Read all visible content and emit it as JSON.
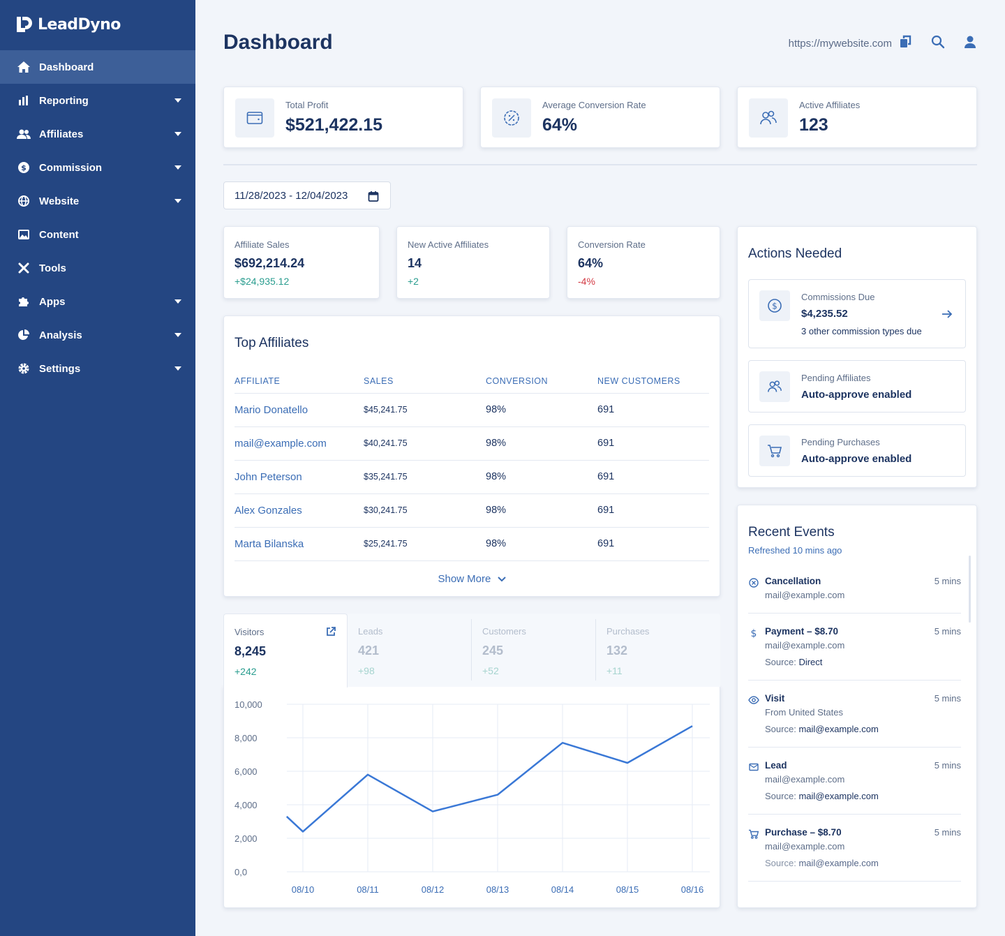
{
  "brand": {
    "name": "LeadDyno"
  },
  "sidebar": {
    "items": [
      {
        "label": "Dashboard",
        "icon": "home-icon",
        "active": true,
        "has_submenu": false
      },
      {
        "label": "Reporting",
        "icon": "bar-chart-icon",
        "active": false,
        "has_submenu": true
      },
      {
        "label": "Affiliates",
        "icon": "users-icon",
        "active": false,
        "has_submenu": true
      },
      {
        "label": "Commission",
        "icon": "dollar-circle-icon",
        "active": false,
        "has_submenu": true
      },
      {
        "label": "Website",
        "icon": "globe-icon",
        "active": false,
        "has_submenu": true
      },
      {
        "label": "Content",
        "icon": "image-icon",
        "active": false,
        "has_submenu": false
      },
      {
        "label": "Tools",
        "icon": "tools-icon",
        "active": false,
        "has_submenu": false
      },
      {
        "label": "Apps",
        "icon": "puzzle-icon",
        "active": false,
        "has_submenu": true
      },
      {
        "label": "Analysis",
        "icon": "pie-chart-icon",
        "active": false,
        "has_submenu": true
      },
      {
        "label": "Settings",
        "icon": "gear-icon",
        "active": false,
        "has_submenu": true
      }
    ]
  },
  "header": {
    "title": "Dashboard",
    "url": "https://mywebsite.com"
  },
  "summary": [
    {
      "label": "Total Profit",
      "value": "$521,422.15",
      "icon": "wallet-icon"
    },
    {
      "label": "Average Conversion Rate",
      "value": "64%",
      "icon": "percent-badge-icon"
    },
    {
      "label": "Active Affiliates",
      "value": "123",
      "icon": "users-icon"
    }
  ],
  "date_range": "11/28/2023 - 12/04/2023",
  "kpis": [
    {
      "label": "Affiliate Sales",
      "value": "$692,214.24",
      "delta": "+$24,935.12",
      "trend": "up"
    },
    {
      "label": "New Active Affiliates",
      "value": "14",
      "delta": "+2",
      "trend": "up"
    },
    {
      "label": "Conversion Rate",
      "value": "64%",
      "delta": "-4%",
      "trend": "down"
    }
  ],
  "top_affiliates": {
    "title": "Top Affiliates",
    "columns": [
      "AFFILIATE",
      "SALES",
      "CONVERSION",
      "NEW CUSTOMERS"
    ],
    "rows": [
      [
        "Mario Donatello",
        "$45,241.75",
        "98%",
        "691"
      ],
      [
        "mail@example.com",
        "$40,241.75",
        "98%",
        "691"
      ],
      [
        "John Peterson",
        "$35,241.75",
        "98%",
        "691"
      ],
      [
        "Alex Gonzales",
        "$30,241.75",
        "98%",
        "691"
      ],
      [
        "Marta Bilanska",
        "$25,241.75",
        "98%",
        "691"
      ]
    ],
    "show_more": "Show More"
  },
  "traffic_tabs": [
    {
      "label": "Visitors",
      "value": "8,245",
      "delta": "+242",
      "active": true
    },
    {
      "label": "Leads",
      "value": "421",
      "delta": "+98",
      "active": false
    },
    {
      "label": "Customers",
      "value": "245",
      "delta": "+52",
      "active": false
    },
    {
      "label": "Purchases",
      "value": "132",
      "delta": "+11",
      "active": false
    }
  ],
  "chart_data": {
    "type": "line",
    "x": [
      "08/10",
      "08/11",
      "08/12",
      "08/13",
      "08/14",
      "08/15",
      "08/16"
    ],
    "y_ticks": [
      "10,000",
      "8,000",
      "6,000",
      "4,000",
      "2,000",
      "0,0"
    ],
    "ylim": [
      0,
      10000
    ],
    "grid": true,
    "color": "#3a78d6",
    "points": [
      [
        -0.25,
        3300
      ],
      [
        0,
        2400
      ],
      [
        1,
        5800
      ],
      [
        2,
        3600
      ],
      [
        3,
        4600
      ],
      [
        4,
        7700
      ],
      [
        5,
        6500
      ],
      [
        6,
        8700
      ]
    ]
  },
  "actions": {
    "title": "Actions Needed",
    "items": [
      {
        "label": "Commissions Due",
        "value": "$4,235.52",
        "sub": "3 other commission types due",
        "icon": "dollar-circle-icon",
        "arrow": true
      },
      {
        "label": "Pending Affiliates",
        "value": "Auto-approve enabled",
        "sub": "",
        "icon": "users-icon",
        "arrow": false
      },
      {
        "label": "Pending Purchases",
        "value": "Auto-approve enabled",
        "sub": "",
        "icon": "cart-icon",
        "arrow": false
      }
    ]
  },
  "events": {
    "title": "Recent Events",
    "subtitle": "Refreshed 10 mins ago",
    "items": [
      {
        "title": "Cancellation",
        "time": "5 mins",
        "line2": "mail@example.com",
        "src_label": "",
        "src_value": "",
        "icon": "cancel-circle-icon"
      },
      {
        "title": "Payment – $8.70",
        "time": "5 mins",
        "line2": "mail@example.com",
        "src_label": "Source:",
        "src_value": "Direct",
        "icon": "dollar-icon"
      },
      {
        "title": "Visit",
        "time": "5 mins",
        "line2": "From United States",
        "src_label": "Source:",
        "src_value": "mail@example.com",
        "icon": "eye-icon"
      },
      {
        "title": "Lead",
        "time": "5 mins",
        "line2": "mail@example.com",
        "src_label": "Source:",
        "src_value": "mail@example.com",
        "icon": "mail-icon"
      },
      {
        "title": "Purchase – $8.70",
        "time": "5 mins",
        "line2": "mail@example.com",
        "src_label": "Source:",
        "src_value": "mail@example.com",
        "icon": "cart-icon"
      }
    ]
  }
}
